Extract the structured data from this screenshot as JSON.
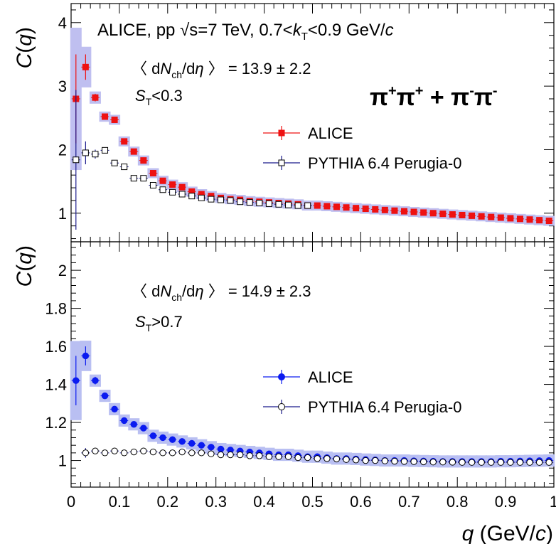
{
  "chart_data": [
    {
      "type": "scatter",
      "panel": "top",
      "ylabel": "C(q)",
      "ylim": [
        0.55,
        4.3
      ],
      "yticks": [
        "1",
        "2",
        "3",
        "4"
      ],
      "xlim": [
        0,
        1
      ],
      "header": "ALICE,  pp  √s=7 TeV,  0.7<kT<0.9 GeV/c",
      "multiplicity": "〈 dNch/dη 〉 = 13.9 ± 2.2",
      "selection": "ST<0.3",
      "pair": "π+π+ + π-π-",
      "legend": [
        "ALICE",
        "PYTHIA 6.4 Perugia-0"
      ],
      "series": [
        {
          "name": "ALICE",
          "color": "#ee1111",
          "marker": "square",
          "x": [
            0.01,
            0.03,
            0.05,
            0.07,
            0.09,
            0.11,
            0.13,
            0.15,
            0.17,
            0.19,
            0.21,
            0.23,
            0.25,
            0.27,
            0.29,
            0.31,
            0.33,
            0.35,
            0.37,
            0.39,
            0.41,
            0.43,
            0.45,
            0.47,
            0.49,
            0.51,
            0.53,
            0.55,
            0.57,
            0.59,
            0.61,
            0.63,
            0.65,
            0.67,
            0.69,
            0.71,
            0.73,
            0.75,
            0.77,
            0.79,
            0.81,
            0.83,
            0.85,
            0.87,
            0.89,
            0.91,
            0.93,
            0.95,
            0.97,
            0.99
          ],
          "y": [
            2.8,
            3.3,
            2.82,
            2.52,
            2.47,
            2.13,
            1.97,
            1.83,
            1.63,
            1.51,
            1.45,
            1.41,
            1.34,
            1.3,
            1.27,
            1.24,
            1.22,
            1.21,
            1.19,
            1.18,
            1.17,
            1.16,
            1.15,
            1.14,
            1.12,
            1.12,
            1.11,
            1.1,
            1.09,
            1.08,
            1.07,
            1.06,
            1.05,
            1.04,
            1.03,
            1.02,
            1.01,
            1.0,
            0.99,
            0.98,
            0.97,
            0.96,
            0.95,
            0.94,
            0.93,
            0.92,
            0.91,
            0.9,
            0.89,
            0.88
          ],
          "yerr": [
            0.7,
            0.2,
            0.06,
            0.05,
            0.04,
            0.03,
            0.03,
            0.03,
            0.02,
            0.02,
            0.02,
            0.02,
            0.02,
            0.02,
            0.02,
            0.02,
            0.02,
            0.02,
            0.02,
            0.02,
            0.02,
            0.02,
            0.02,
            0.02,
            0.02,
            0.02,
            0.02,
            0.02,
            0.02,
            0.02,
            0.02,
            0.02,
            0.02,
            0.02,
            0.02,
            0.02,
            0.02,
            0.02,
            0.02,
            0.02,
            0.02,
            0.02,
            0.02,
            0.02,
            0.02,
            0.02,
            0.02,
            0.02,
            0.02,
            0.02
          ]
        },
        {
          "name": "PYTHIA 6.4 Perugia-0",
          "color": "#000000",
          "marker": "open-square",
          "x": [
            0.01,
            0.03,
            0.05,
            0.07,
            0.09,
            0.11,
            0.13,
            0.15,
            0.17,
            0.19,
            0.21,
            0.23,
            0.25,
            0.27,
            0.29,
            0.31,
            0.33,
            0.35,
            0.37,
            0.39,
            0.41,
            0.43,
            0.45,
            0.47,
            0.49
          ],
          "y": [
            1.84,
            1.95,
            1.93,
            1.99,
            1.79,
            1.73,
            1.55,
            1.55,
            1.44,
            1.37,
            1.33,
            1.3,
            1.27,
            1.24,
            1.22,
            1.21,
            1.2,
            1.18,
            1.17,
            1.16,
            1.15,
            1.14,
            1.13,
            1.12,
            1.12
          ],
          "yerr": [
            1.1,
            0.18,
            0.07,
            0.04,
            0.03,
            0.02,
            0.02,
            0.02,
            0.02,
            0.02,
            0.02,
            0.02,
            0.02,
            0.02,
            0.02,
            0.02,
            0.02,
            0.02,
            0.02,
            0.02,
            0.02,
            0.02,
            0.02,
            0.02,
            0.02
          ]
        }
      ]
    },
    {
      "type": "scatter",
      "panel": "bottom",
      "ylabel": "C(q)",
      "xlabel": "q (GeV/c)",
      "xlim": [
        0,
        1
      ],
      "ylim": [
        0.86,
        2.15
      ],
      "xticks": [
        "0",
        "0.1",
        "0.2",
        "0.3",
        "0.4",
        "0.5",
        "0.6",
        "0.7",
        "0.8",
        "0.9",
        "1"
      ],
      "yticks": [
        "1",
        "1.2",
        "1.4",
        "1.6",
        "1.8",
        "2"
      ],
      "multiplicity": "〈 dNch/dη 〉 = 14.9 ± 2.3",
      "selection": "ST>0.7",
      "legend": [
        "ALICE",
        "PYTHIA 6.4 Perugia-0"
      ],
      "series": [
        {
          "name": "ALICE",
          "color": "#0b1bf0",
          "marker": "circle",
          "x": [
            0.01,
            0.03,
            0.05,
            0.07,
            0.09,
            0.11,
            0.13,
            0.15,
            0.17,
            0.19,
            0.21,
            0.23,
            0.25,
            0.27,
            0.29,
            0.31,
            0.33,
            0.35,
            0.37,
            0.39,
            0.41,
            0.43,
            0.45,
            0.47,
            0.49,
            0.51,
            0.53,
            0.55,
            0.57,
            0.59,
            0.61,
            0.63,
            0.65,
            0.67,
            0.69,
            0.71,
            0.73,
            0.75,
            0.77,
            0.79,
            0.81,
            0.83,
            0.85,
            0.87,
            0.89,
            0.91,
            0.93,
            0.95,
            0.97,
            0.99
          ],
          "y": [
            1.42,
            1.55,
            1.42,
            1.34,
            1.27,
            1.21,
            1.19,
            1.17,
            1.13,
            1.12,
            1.11,
            1.1,
            1.09,
            1.08,
            1.07,
            1.06,
            1.055,
            1.05,
            1.045,
            1.04,
            1.035,
            1.03,
            1.03,
            1.025,
            1.02,
            1.02,
            1.015,
            1.01,
            1.01,
            1.008,
            1.005,
            1.003,
            1.0,
            1.0,
            1.0,
            0.998,
            0.997,
            0.996,
            0.995,
            0.995,
            0.995,
            0.995,
            0.995,
            0.995,
            0.996,
            0.996,
            0.997,
            0.998,
            0.999,
            1.0
          ],
          "yerr": [
            0.13,
            0.05,
            0.02,
            0.015,
            0.012,
            0.01,
            0.01,
            0.01,
            0.008,
            0.008,
            0.008,
            0.008,
            0.008,
            0.008,
            0.008,
            0.008,
            0.008,
            0.008,
            0.008,
            0.008,
            0.008,
            0.008,
            0.008,
            0.008,
            0.008,
            0.008,
            0.008,
            0.008,
            0.008,
            0.008,
            0.008,
            0.008,
            0.008,
            0.008,
            0.008,
            0.008,
            0.008,
            0.008,
            0.008,
            0.008,
            0.008,
            0.008,
            0.008,
            0.008,
            0.008,
            0.008,
            0.008,
            0.008,
            0.008,
            0.008
          ]
        },
        {
          "name": "PYTHIA 6.4 Perugia-0",
          "color": "#000000",
          "marker": "open-circle",
          "x": [
            0.03,
            0.05,
            0.07,
            0.09,
            0.11,
            0.13,
            0.15,
            0.17,
            0.19,
            0.21,
            0.23,
            0.25,
            0.27,
            0.29,
            0.31,
            0.33,
            0.35,
            0.37,
            0.39,
            0.41,
            0.43,
            0.45,
            0.47,
            0.49,
            0.51,
            0.53,
            0.55,
            0.57,
            0.59,
            0.61,
            0.63,
            0.65,
            0.67,
            0.69,
            0.71,
            0.73,
            0.75,
            0.77,
            0.79,
            0.81,
            0.83,
            0.85,
            0.87,
            0.89,
            0.91,
            0.93,
            0.95,
            0.97,
            0.99
          ],
          "y": [
            1.04,
            1.05,
            1.04,
            1.05,
            1.04,
            1.045,
            1.05,
            1.045,
            1.04,
            1.04,
            1.045,
            1.04,
            1.04,
            1.035,
            1.03,
            1.03,
            1.03,
            1.025,
            1.025,
            1.02,
            1.02,
            1.02,
            1.015,
            1.015,
            1.01,
            1.01,
            1.008,
            1.005,
            1.003,
            1.0,
            1.0,
            0.998,
            0.996,
            0.995,
            0.994,
            0.993,
            0.992,
            0.992,
            0.991,
            0.99,
            0.99,
            0.99,
            0.99,
            0.99,
            0.99,
            0.99,
            0.99,
            0.99,
            0.99
          ],
          "yerr": [
            0.025,
            0.015,
            0.012,
            0.01,
            0.008,
            0.008,
            0.008,
            0.008,
            0.006,
            0.006,
            0.006,
            0.006,
            0.006,
            0.006,
            0.006,
            0.006,
            0.006,
            0.006,
            0.006,
            0.006,
            0.006,
            0.006,
            0.006,
            0.006,
            0.006,
            0.006,
            0.006,
            0.006,
            0.006,
            0.006,
            0.006,
            0.006,
            0.006,
            0.006,
            0.006,
            0.006,
            0.006,
            0.006,
            0.006,
            0.006,
            0.006,
            0.006,
            0.006,
            0.006,
            0.006,
            0.006,
            0.006,
            0.006,
            0.006
          ]
        }
      ]
    }
  ]
}
